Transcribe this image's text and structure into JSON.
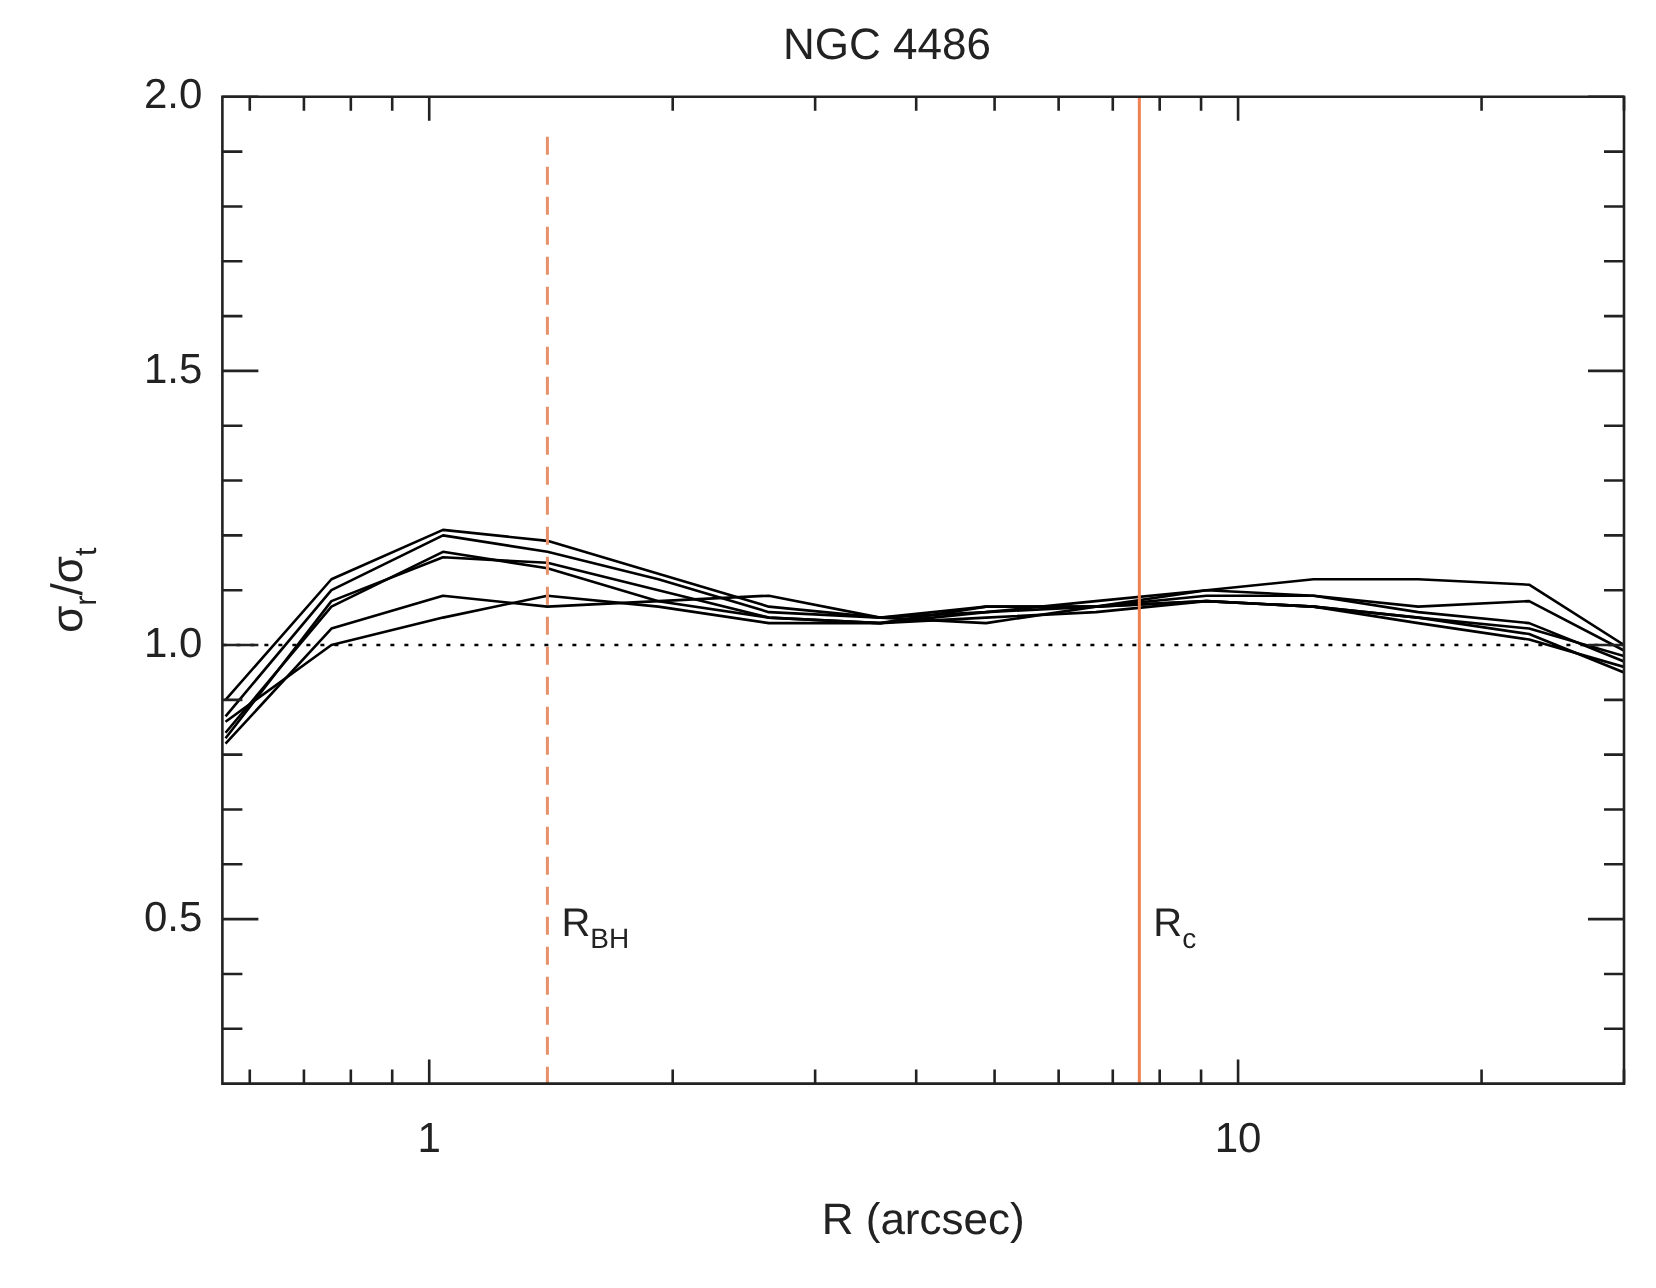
{
  "chart_data": {
    "type": "line",
    "title": "NGC 4486",
    "xlabel": "R (arcsec)",
    "ylabel": "σ$_{r}$/σ$_{t}$",
    "log": "x",
    "marker": "none",
    "line_style": "solid",
    "legend": false,
    "xlim": [
      0.555,
      30
    ],
    "ylim": [
      0.2,
      2.0
    ],
    "xticks": [
      {
        "value": 0.6,
        "label": null
      },
      {
        "value": 0.7,
        "label": null
      },
      {
        "value": 0.8,
        "label": null
      },
      {
        "value": 0.9,
        "label": null
      },
      1,
      {
        "value": 2,
        "label": null
      },
      {
        "value": 3,
        "label": null
      },
      {
        "value": 4,
        "label": null
      },
      {
        "value": 5,
        "label": null
      },
      {
        "value": 6,
        "label": null
      },
      {
        "value": 7,
        "label": null
      },
      {
        "value": 8,
        "label": null
      },
      {
        "value": 9,
        "label": null
      },
      10,
      {
        "value": 20,
        "label": null
      },
      {
        "value": 30,
        "label": null
      }
    ],
    "yticks": [
      {
        "value": 0.3,
        "label": null
      },
      {
        "value": 0.4,
        "label": null
      },
      0.5,
      {
        "value": 0.6,
        "label": null
      },
      {
        "value": 0.7,
        "label": null
      },
      {
        "value": 0.8,
        "label": null
      },
      {
        "value": 0.9,
        "label": null
      },
      {
        "value": 1,
        "label": "1.0"
      },
      {
        "value": 1.1,
        "label": null
      },
      {
        "value": 1.2,
        "label": null
      },
      {
        "value": 1.3,
        "label": null
      },
      {
        "value": 1.4,
        "label": null
      },
      1.5,
      {
        "value": 1.6,
        "label": null
      },
      {
        "value": 1.7,
        "label": null
      },
      {
        "value": 1.8,
        "label": null
      },
      {
        "value": 1.9,
        "label": null
      },
      {
        "value": 2,
        "label": "2.0"
      }
    ],
    "x": [
      0.56,
      0.757,
      1.04,
      1.4,
      1.92,
      2.63,
      3.61,
      4.88,
      6.67,
      9.14,
      12.4,
      16.7,
      22.9,
      30
    ],
    "series": [
      {
        "color": "#000000",
        "values": [
          0.9,
          1.12,
          1.21,
          1.19,
          1.13,
          1.07,
          1.05,
          1.06,
          1.08,
          1.1,
          1.12,
          1.12,
          1.11,
          1.0
        ]
      },
      {
        "color": "#000000",
        "values": [
          0.87,
          1.1,
          1.2,
          1.17,
          1.12,
          1.06,
          1.05,
          1.04,
          1.07,
          1.1,
          1.09,
          1.07,
          1.08,
          0.99
        ]
      },
      {
        "color": "#000000",
        "values": [
          0.84,
          1.07,
          1.17,
          1.14,
          1.08,
          1.05,
          1.04,
          1.05,
          1.06,
          1.08,
          1.07,
          1.05,
          1.03,
          0.98
        ]
      },
      {
        "color": "#000000",
        "values": [
          0.83,
          1.08,
          1.16,
          1.15,
          1.1,
          1.05,
          1.04,
          1.06,
          1.07,
          1.09,
          1.09,
          1.06,
          1.04,
          0.97
        ]
      },
      {
        "color": "#000000",
        "values": [
          0.82,
          1.03,
          1.09,
          1.07,
          1.08,
          1.09,
          1.05,
          1.07,
          1.07,
          1.08,
          1.07,
          1.04,
          1.01,
          0.96
        ]
      },
      {
        "color": "#000000",
        "values": [
          0.86,
          1.0,
          1.05,
          1.09,
          1.07,
          1.04,
          1.04,
          1.07,
          1.07,
          1.08,
          1.07,
          1.05,
          1.02,
          0.95
        ]
      }
    ],
    "ref_lines": [
      {
        "axis": "x",
        "value": 1.4,
        "label": "R$_{BH}$",
        "color": "#e8906a",
        "line_style": "dashed"
      },
      {
        "axis": "x",
        "value": 7.55,
        "label": "R$_{c}$",
        "color": "#f08050",
        "line_style": "solid"
      },
      {
        "axis": "y",
        "value": 1.0,
        "color": "#000000",
        "line_style": "dotted"
      }
    ]
  }
}
